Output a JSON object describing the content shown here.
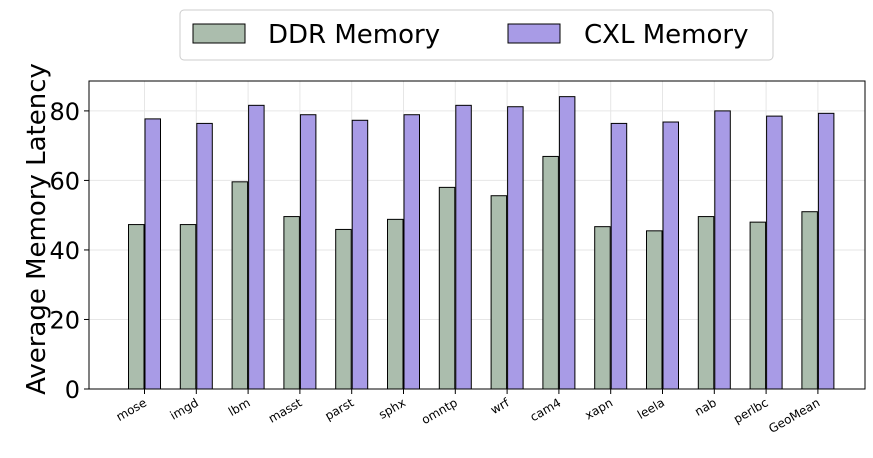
{
  "chart_data": {
    "type": "bar",
    "ylabel": "Average Memory Latency",
    "xlabel": "",
    "ylim": [
      0,
      88.6
    ],
    "yticks": [
      0,
      20,
      40,
      60,
      80
    ],
    "grid": true,
    "legend_position": "top-center",
    "categories": [
      "mose",
      "imgd",
      "lbm",
      "masst",
      "parst",
      "sphx",
      "omntp",
      "wrf",
      "cam4",
      "xapn",
      "leela",
      "nab",
      "perlbc",
      "GeoMean"
    ],
    "series": [
      {
        "name": "DDR Memory",
        "color": "#abbdad",
        "values": [
          47.3,
          47.3,
          59.6,
          49.6,
          45.9,
          48.8,
          58.0,
          55.6,
          66.9,
          46.7,
          45.5,
          49.6,
          48.0,
          51.0
        ]
      },
      {
        "name": "CXL Memory",
        "color": "#a89be6",
        "values": [
          77.7,
          76.4,
          81.6,
          78.9,
          77.3,
          78.9,
          81.6,
          81.2,
          84.1,
          76.4,
          76.8,
          80.0,
          78.5,
          79.3
        ]
      }
    ]
  }
}
